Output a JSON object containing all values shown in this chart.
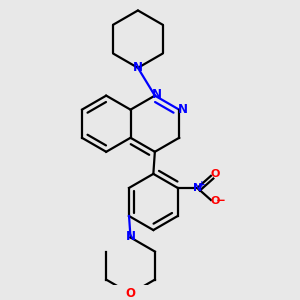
{
  "bg_color": "#e8e8e8",
  "bond_color": "#000000",
  "n_color": "#0000ff",
  "o_color": "#ff0000",
  "line_width": 1.6,
  "dbo": 0.018,
  "font_size": 8.5,
  "figsize": [
    3.0,
    3.0
  ],
  "dpi": 100,
  "xlim": [
    0.1,
    0.9
  ],
  "ylim": [
    0.03,
    0.97
  ]
}
